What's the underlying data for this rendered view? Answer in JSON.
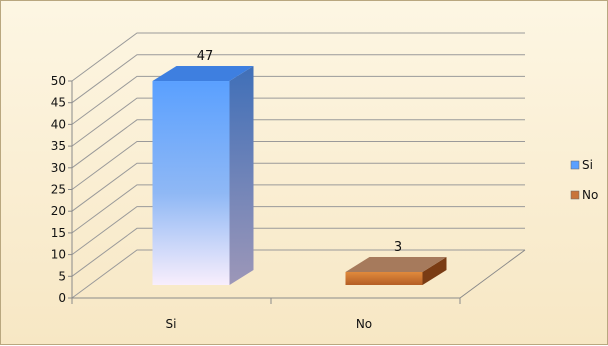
{
  "chart_data": {
    "type": "bar",
    "categories": [
      "Si",
      "No"
    ],
    "values": [
      47,
      3
    ],
    "ylim": [
      0,
      50
    ],
    "yticks": [
      "0",
      "5",
      "10",
      "15",
      "20",
      "25",
      "30",
      "35",
      "40",
      "45",
      "50"
    ],
    "legend": [
      {
        "label": "Si",
        "color": "#5aa0ff"
      },
      {
        "label": "No",
        "color": "#c8743a"
      }
    ],
    "data_labels": [
      "47",
      "3"
    ],
    "grid": true,
    "legend_position": "right"
  }
}
